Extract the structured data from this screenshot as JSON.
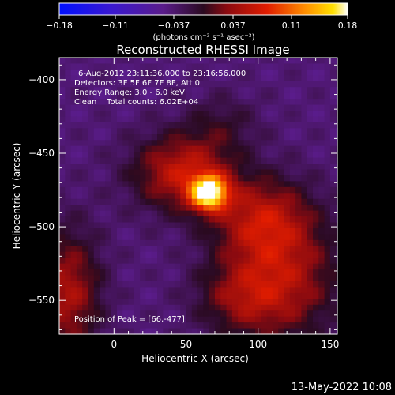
{
  "chart_data": {
    "type": "heatmap",
    "title": "Reconstructed RHESSI Image",
    "xlabel": "Heliocentric X (arcsec)",
    "ylabel": "Heliocentric Y (arcsec)",
    "xlim": [
      -38,
      155
    ],
    "ylim": [
      -573,
      -385
    ],
    "x_ticks": [
      0,
      50,
      100,
      150
    ],
    "y_ticks": [
      -400,
      -450,
      -500,
      -550
    ],
    "colorbar": {
      "range": [
        -0.18,
        0.18
      ],
      "ticks": [
        "-0.18",
        "-0.11",
        "-0.037",
        "0.037",
        "0.11",
        "0.18"
      ],
      "label": "(photons cm⁻² s⁻¹ asec⁻²)",
      "colormap": "blue-purple-red-yellow-white"
    },
    "annotations": [
      "6-Aug-2012 23:11:36.000 to 23:16:56.000",
      "Detectors: 3F 5F 6F 7F 8F, Att 0",
      "Energy Range: 3.0 - 6.0 keV",
      "Clean    Total counts: 6.02E+04"
    ],
    "peak_label": "Position of Peak = [66,-477]",
    "peak": {
      "x": 66,
      "y": -477,
      "value": 0.18
    },
    "sources": [
      {
        "x": 66,
        "y": -477,
        "sx": 9,
        "sy": 8,
        "amp": 0.19
      },
      {
        "x": 48,
        "y": -463,
        "sx": 24,
        "sy": 18,
        "amp": 0.1
      },
      {
        "x": 102,
        "y": -495,
        "sx": 24,
        "sy": 20,
        "amp": 0.085
      },
      {
        "x": 120,
        "y": -535,
        "sx": 26,
        "sy": 30,
        "amp": 0.075
      },
      {
        "x": 88,
        "y": -548,
        "sx": 22,
        "sy": 18,
        "amp": 0.06
      },
      {
        "x": -32,
        "y": -545,
        "sx": 16,
        "sy": 30,
        "amp": 0.085
      },
      {
        "x": 75,
        "y": -430,
        "sx": 18,
        "sy": 14,
        "amp": 0.03
      }
    ],
    "background": -0.04,
    "pixel_size": 4
  },
  "timestamp": "13-May-2022 10:08"
}
